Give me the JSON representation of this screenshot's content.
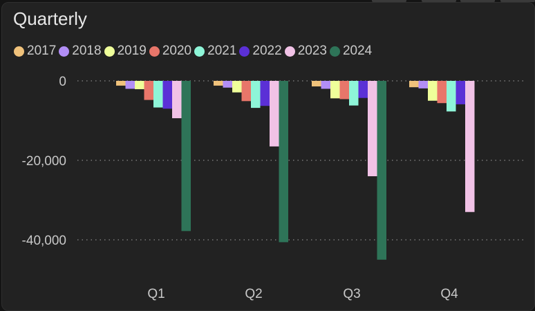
{
  "title": "Quarterly",
  "colors": {
    "background": "#222222",
    "gridline": "#8a8a8a",
    "text": "#c9c9c9"
  },
  "chart_data": {
    "type": "bar",
    "categories": [
      "Q1",
      "Q2",
      "Q3",
      "Q4"
    ],
    "ylim": [
      -50000,
      0
    ],
    "yticks": [
      0,
      -20000,
      -40000
    ],
    "ytick_labels": [
      "0",
      "-20,000",
      "-40,000"
    ],
    "grid": true,
    "legend_position": "top-left",
    "series": [
      {
        "name": "2017",
        "color": "#f0c27b",
        "values": [
          -1200,
          -1200,
          -1400,
          -1600
        ]
      },
      {
        "name": "2018",
        "color": "#b28ef6",
        "values": [
          -2000,
          -1700,
          -2000,
          -1900
        ]
      },
      {
        "name": "2019",
        "color": "#efff9a",
        "values": [
          -2100,
          -2900,
          -4400,
          -5000
        ]
      },
      {
        "name": "2020",
        "color": "#e8766a",
        "values": [
          -4800,
          -5100,
          -4600,
          -5600
        ]
      },
      {
        "name": "2021",
        "color": "#8ef5d8",
        "values": [
          -6700,
          -6800,
          -6200,
          -7700
        ]
      },
      {
        "name": "2022",
        "color": "#5b30d6",
        "values": [
          -7000,
          -6300,
          -4300,
          -5900
        ]
      },
      {
        "name": "2023",
        "color": "#f1c2e6",
        "values": [
          -9400,
          -16500,
          -24000,
          -33000
        ]
      },
      {
        "name": "2024",
        "color": "#2e7458",
        "values": [
          -37800,
          -40600,
          -45000,
          null
        ]
      }
    ]
  }
}
